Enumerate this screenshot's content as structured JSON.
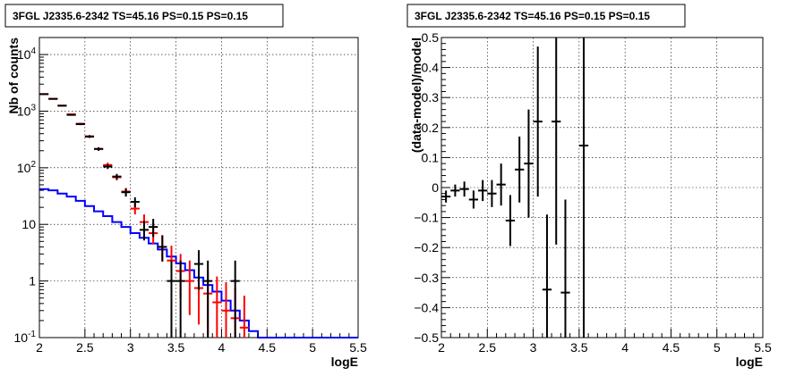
{
  "chart_data": [
    {
      "type": "line",
      "title": "3FGL J2335.6-2342 TS=45.16 PS=0.15 PS=0.15",
      "xlabel": "logE",
      "ylabel": "Nb of counts",
      "xlim": [
        2,
        5.5
      ],
      "ylim": [
        0.1,
        20000
      ],
      "yscale": "log",
      "grid": true,
      "x_ticks": [
        "2",
        "2.5",
        "3",
        "3.5",
        "4",
        "4.5",
        "5",
        "5.5"
      ],
      "y_ticks": [
        {
          "value": 0.1,
          "label": "10",
          "exp": "-1"
        },
        {
          "value": 1,
          "label": "1",
          "exp": ""
        },
        {
          "value": 10,
          "label": "10",
          "exp": ""
        },
        {
          "value": 100,
          "label": "10",
          "exp": "2"
        },
        {
          "value": 1000,
          "label": "10",
          "exp": "3"
        },
        {
          "value": 10000,
          "label": "10",
          "exp": "4"
        }
      ],
      "series": [
        {
          "style": "step",
          "color": "#0000ff",
          "bin_edges": [
            2.0,
            2.1,
            2.2,
            2.3,
            2.4,
            2.5,
            2.6,
            2.7,
            2.8,
            2.9,
            3.0,
            3.1,
            3.2,
            3.3,
            3.4,
            3.5,
            3.6,
            3.7,
            3.8,
            3.9,
            4.0,
            4.1,
            4.2,
            4.3,
            4.4,
            4.5,
            4.6,
            4.7,
            4.8,
            4.9,
            5.0,
            5.1,
            5.2,
            5.3,
            5.4,
            5.5
          ],
          "values": [
            42,
            40,
            35,
            31,
            26,
            21,
            17,
            14,
            11,
            9,
            7,
            5.8,
            4.6,
            3.6,
            2.7,
            2.05,
            1.55,
            1.15,
            0.85,
            0.65,
            0.45,
            0.3,
            0.2,
            0.13,
            0.1,
            0.1,
            0.1,
            0.1,
            0.1,
            0.1,
            0.1,
            0.1,
            0.1,
            0.1,
            0.1
          ]
        },
        {
          "style": "errorbar",
          "color": "#ff0000",
          "points": [
            {
              "x": 2.05,
              "y": 2000,
              "lo": 1955,
              "hi": 2045
            },
            {
              "x": 2.15,
              "y": 1650,
              "lo": 1610,
              "hi": 1690
            },
            {
              "x": 2.25,
              "y": 1250,
              "lo": 1215,
              "hi": 1285
            },
            {
              "x": 2.35,
              "y": 880,
              "lo": 850,
              "hi": 910
            },
            {
              "x": 2.45,
              "y": 600,
              "lo": 576,
              "hi": 624
            },
            {
              "x": 2.55,
              "y": 360,
              "lo": 341,
              "hi": 379
            },
            {
              "x": 2.65,
              "y": 215,
              "lo": 200,
              "hi": 230
            },
            {
              "x": 2.75,
              "y": 112,
              "lo": 101,
              "hi": 123
            },
            {
              "x": 2.85,
              "y": 68,
              "lo": 60,
              "hi": 76
            },
            {
              "x": 2.95,
              "y": 38,
              "lo": 32,
              "hi": 44
            },
            {
              "x": 3.05,
              "y": 19,
              "lo": 15,
              "hi": 24
            },
            {
              "x": 3.15,
              "y": 11,
              "lo": 8,
              "hi": 15
            },
            {
              "x": 3.25,
              "y": 7,
              "lo": 4.5,
              "hi": 10.5
            },
            {
              "x": 3.35,
              "y": 4,
              "lo": 2.3,
              "hi": 6.5
            },
            {
              "x": 3.45,
              "y": 2.3,
              "lo": 1.0,
              "hi": 4.2
            },
            {
              "x": 3.55,
              "y": 1.5,
              "lo": 0.5,
              "hi": 3.0
            },
            {
              "x": 3.65,
              "y": 1.0,
              "lo": 0.25,
              "hi": 2.3
            },
            {
              "x": 3.75,
              "y": 0.75,
              "lo": 0.17,
              "hi": 1.9
            },
            {
              "x": 3.85,
              "y": 0.6,
              "lo": 0.11,
              "hi": 1.5
            },
            {
              "x": 3.95,
              "y": 0.42,
              "lo": 0.1,
              "hi": 1.2
            },
            {
              "x": 4.05,
              "y": 0.3,
              "lo": 0.1,
              "hi": 0.95
            },
            {
              "x": 4.15,
              "y": 0.22,
              "lo": 0.1,
              "hi": 0.75
            },
            {
              "x": 4.25,
              "y": 0.15,
              "lo": 0.1,
              "hi": 0.55
            }
          ]
        },
        {
          "style": "errorbar",
          "color": "#000000",
          "points": [
            {
              "x": 2.05,
              "y": 2000,
              "lo": 1955,
              "hi": 2045
            },
            {
              "x": 2.15,
              "y": 1650,
              "lo": 1610,
              "hi": 1690
            },
            {
              "x": 2.25,
              "y": 1250,
              "lo": 1215,
              "hi": 1285
            },
            {
              "x": 2.35,
              "y": 860,
              "lo": 830,
              "hi": 890
            },
            {
              "x": 2.45,
              "y": 590,
              "lo": 566,
              "hi": 614
            },
            {
              "x": 2.55,
              "y": 355,
              "lo": 336,
              "hi": 374
            },
            {
              "x": 2.65,
              "y": 215,
              "lo": 200,
              "hi": 230
            },
            {
              "x": 2.75,
              "y": 105,
              "lo": 95,
              "hi": 115
            },
            {
              "x": 2.85,
              "y": 70,
              "lo": 62,
              "hi": 78
            },
            {
              "x": 2.95,
              "y": 37,
              "lo": 31,
              "hi": 43
            },
            {
              "x": 3.05,
              "y": 25,
              "lo": 20,
              "hi": 30
            },
            {
              "x": 3.15,
              "y": 8,
              "lo": 5.2,
              "hi": 11.5
            },
            {
              "x": 3.25,
              "y": 9,
              "lo": 6.0,
              "hi": 12.5
            },
            {
              "x": 3.35,
              "y": 4,
              "lo": 2.2,
              "hi": 6.3
            },
            {
              "x": 3.45,
              "y": 1,
              "lo": 0.1,
              "hi": 2.3
            },
            {
              "x": 3.55,
              "y": 1,
              "lo": 0.1,
              "hi": 2.3
            },
            {
              "x": 3.75,
              "y": 2,
              "lo": 0.7,
              "hi": 3.5
            },
            {
              "x": 3.85,
              "y": 1,
              "lo": 0.1,
              "hi": 2.3
            },
            {
              "x": 4.15,
              "y": 1,
              "lo": 0.1,
              "hi": 2.3
            }
          ]
        }
      ]
    },
    {
      "type": "scatter",
      "title": "3FGL J2335.6-2342 TS=45.16 PS=0.15 PS=0.15",
      "xlabel": "logE",
      "ylabel": "(data-model)/model",
      "xlim": [
        2,
        5.5
      ],
      "ylim": [
        -0.5,
        0.5
      ],
      "grid": true,
      "x_ticks": [
        "2",
        "2.5",
        "3",
        "3.5",
        "4",
        "4.5",
        "5",
        "5.5"
      ],
      "y_ticks": [
        "−0.5",
        "−0.4",
        "−0.3",
        "−0.2",
        "−0.1",
        "0",
        "0.1",
        "0.2",
        "0.3",
        "0.4",
        "0.5"
      ],
      "series": [
        {
          "style": "errorbar",
          "color": "#000000",
          "points": [
            {
              "x": 2.05,
              "y": -0.03,
              "err": 0.02
            },
            {
              "x": 2.15,
              "y": -0.01,
              "err": 0.02
            },
            {
              "x": 2.25,
              "y": -0.005,
              "err": 0.025
            },
            {
              "x": 2.35,
              "y": -0.04,
              "err": 0.03
            },
            {
              "x": 2.45,
              "y": -0.01,
              "err": 0.035
            },
            {
              "x": 2.55,
              "y": -0.02,
              "err": 0.045
            },
            {
              "x": 2.65,
              "y": 0.01,
              "err": 0.07
            },
            {
              "x": 2.75,
              "y": -0.11,
              "err": 0.085
            },
            {
              "x": 2.85,
              "y": 0.06,
              "err": 0.11
            },
            {
              "x": 2.95,
              "y": 0.08,
              "err": 0.18
            },
            {
              "x": 3.05,
              "y": 0.22,
              "err": 0.25
            },
            {
              "x": 3.15,
              "y": -0.34,
              "err": 0.25
            },
            {
              "x": 3.25,
              "y": 0.22,
              "err": 0.41
            },
            {
              "x": 3.35,
              "y": -0.35,
              "err": 0.31
            },
            {
              "x": 3.55,
              "y": 0.14,
              "err": 0.7
            }
          ]
        }
      ]
    }
  ]
}
